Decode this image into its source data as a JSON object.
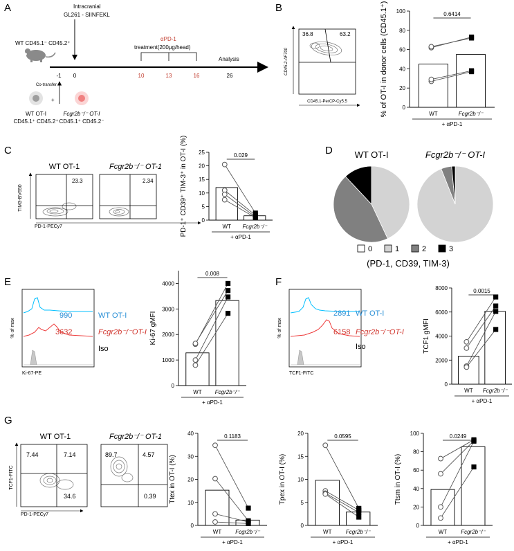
{
  "panels": {
    "A": {
      "letter": "A",
      "recipient": "WT CD45.1⁻ CD45.2⁺",
      "injection_line1": "Intracranial",
      "injection_line2": "GL261 - SIINFEKL",
      "treatment_label": "αPD-1",
      "treatment_dose": "treatment(200μg/head)",
      "analysis": "Analysis",
      "timepoints": [
        "-1",
        "0",
        "10",
        "13",
        "16",
        "26"
      ],
      "cotransfer": "Co-transfer",
      "plus": "+",
      "donor_wt_name": "WT OT-I",
      "donor_wt_markers": "CD45.1⁺ CD45.2⁺",
      "donor_ko_name": "Fcgr2b⁻/⁻ OT-I",
      "donor_ko_markers": "CD45.1⁺ CD45.2⁻",
      "colors": {
        "treatment": "#c0392b",
        "wt_cell": "#bdbdbd",
        "ko_cell": "#f4a6a6"
      }
    },
    "B": {
      "letter": "B",
      "flow": {
        "q_left": "36.8",
        "q_right": "63.2",
        "xlabel": "CD45.1-PerCP-Cy5.5",
        "ylabel": "CD45.2-AF700"
      }
    },
    "C": {
      "letter": "C",
      "flow_wt": {
        "title": "WT OT-1",
        "value": "23.3"
      },
      "flow_ko": {
        "title": "Fcgr2b⁻/⁻ OT-1",
        "value": "2.34"
      },
      "flow_xlabel": "PD-1-PECy7",
      "flow_ylabel": "TIM3-BV650"
    },
    "D": {
      "letter": "D",
      "legend_caption": "(PD-1, CD39, TIM-3)"
    },
    "E": {
      "letter": "E",
      "hist": {
        "wt_value": "990",
        "wt_label": "WT OT-I",
        "ko_value": "3632",
        "ko_label": "Fcgr2b⁻/⁻OT-I",
        "iso_label": "Iso",
        "xlabel": "Ki-67-PE",
        "ylabel": "% of max"
      }
    },
    "F": {
      "letter": "F",
      "hist": {
        "wt_value": "2891",
        "wt_label": "WT OT-I",
        "ko_value": "6158",
        "ko_label": "Fcgr2b⁻/⁻OT-I",
        "iso_label": "Iso",
        "xlabel": "TCF1-FITC",
        "ylabel": "% of max"
      }
    },
    "G": {
      "letter": "G",
      "flow_wt": {
        "title": "WT OT-1",
        "q_ul": "7.44",
        "q_ur": "7.14",
        "q_lr": "34.6"
      },
      "flow_ko": {
        "title": "Fcgr2b⁻/⁻ OT-1",
        "q_ul": "89.7",
        "q_ur": "4.57",
        "q_lr": "0.39"
      },
      "flow_xlabel": "PD-1-PECy7",
      "flow_ylabel": "TCF1-FITC"
    }
  },
  "chart_data": [
    {
      "id": "B",
      "type": "bar",
      "ylabel": "% of OT-I in donor cells (CD45.1⁺)",
      "ylim": [
        0,
        100
      ],
      "yticks": [
        0,
        20,
        40,
        60,
        80,
        100
      ],
      "categories": [
        "WT",
        "Fcgr2b⁻/⁻"
      ],
      "treatment": "+ αPD-1",
      "pvalue": "0.6414",
      "bars": [
        45,
        55
      ],
      "wt_points": [
        62,
        63,
        27,
        29
      ],
      "ko_points": [
        73,
        72,
        37,
        38
      ]
    },
    {
      "id": "C",
      "type": "bar",
      "ylabel": "PD-1⁺ CD39⁺ TIM-3⁺ in OT-I (%)",
      "ylim": [
        0,
        25
      ],
      "yticks": [
        0,
        5,
        10,
        15,
        20,
        25
      ],
      "categories": [
        "WT",
        "Fcgr2b⁻/⁻"
      ],
      "treatment": "+ αPD-1",
      "pvalue": "0.029",
      "bars": [
        12,
        1.6
      ],
      "wt_points": [
        20.5,
        11,
        9.5,
        7.5
      ],
      "ko_points": [
        2.6,
        1.8,
        1.2,
        0.9
      ]
    },
    {
      "id": "D1",
      "type": "pie",
      "title": "WT OT-I",
      "labels": [
        "0",
        "1",
        "2",
        "3"
      ],
      "values": [
        0,
        43,
        45,
        12
      ],
      "colors": [
        "#ffffff",
        "#d3d3d3",
        "#808080",
        "#000000"
      ]
    },
    {
      "id": "D2",
      "type": "pie",
      "title": "Fcgr2b⁻/⁻ OT-I",
      "labels": [
        "0",
        "1",
        "2",
        "3"
      ],
      "values": [
        0,
        94,
        4.5,
        1.5
      ],
      "colors": [
        "#ffffff",
        "#d3d3d3",
        "#808080",
        "#000000"
      ]
    },
    {
      "id": "E",
      "type": "bar",
      "ylabel": "Ki-67 gMFI",
      "ylim": [
        0,
        4500
      ],
      "yticks": [
        0,
        1000,
        2000,
        3000,
        4000
      ],
      "categories": [
        "WT",
        "Fcgr2b⁻/⁻"
      ],
      "treatment": "+ αPD-1",
      "pvalue": "0.008",
      "bars": [
        1280,
        3330
      ],
      "wt_points": [
        1620,
        1650,
        1000,
        800
      ],
      "ko_points": [
        4000,
        3720,
        3470,
        2830
      ]
    },
    {
      "id": "F",
      "type": "bar",
      "ylabel": "TCF1 gMFI",
      "ylim": [
        0,
        8000
      ],
      "yticks": [
        0,
        2000,
        4000,
        6000,
        8000
      ],
      "categories": [
        "WT",
        "Fcgr2b⁻/⁻"
      ],
      "treatment": "+ αPD-1",
      "pvalue": "0.0015",
      "bars": [
        2330,
        6060
      ],
      "wt_points": [
        3520,
        3000,
        1500,
        1420
      ],
      "ko_points": [
        7250,
        6500,
        6050,
        4550
      ]
    },
    {
      "id": "G1",
      "type": "bar",
      "ylabel": "Ttex in OT-I (%)",
      "ylim": [
        0,
        40
      ],
      "yticks": [
        0,
        10,
        20,
        30,
        40
      ],
      "categories": [
        "WT",
        "Fcgr2b⁻/⁻"
      ],
      "treatment": "+ αPD-1",
      "pvalue": "0.1183",
      "bars": [
        15.3,
        2.3
      ],
      "wt_points": [
        34.8,
        20.3,
        5,
        1.5
      ],
      "ko_points": [
        7.5,
        2,
        1.5,
        0.8
      ]
    },
    {
      "id": "G2",
      "type": "bar",
      "ylabel": "Tpex in OT-I (%)",
      "ylim": [
        0,
        20
      ],
      "yticks": [
        0,
        5,
        10,
        15,
        20
      ],
      "categories": [
        "WT",
        "Fcgr2b⁻/⁻"
      ],
      "treatment": "+ αPD-1",
      "pvalue": "0.0595",
      "bars": [
        9.8,
        2.9
      ],
      "wt_points": [
        17.4,
        7.5,
        7,
        6.8
      ],
      "ko_points": [
        3.7,
        3.3,
        2.8,
        1.8
      ]
    },
    {
      "id": "G3",
      "type": "bar",
      "ylabel": "Ttsm in OT-I (%)",
      "ylim": [
        0,
        100
      ],
      "yticks": [
        0,
        20,
        40,
        60,
        80,
        100
      ],
      "categories": [
        "WT",
        "Fcgr2b⁻/⁻"
      ],
      "treatment": "+ αPD-1",
      "pvalue": "0.0249",
      "bars": [
        39,
        85.5
      ],
      "wt_points": [
        72.5,
        56,
        20,
        8
      ],
      "ko_points": [
        93,
        92,
        91.5,
        63.5
      ]
    }
  ]
}
